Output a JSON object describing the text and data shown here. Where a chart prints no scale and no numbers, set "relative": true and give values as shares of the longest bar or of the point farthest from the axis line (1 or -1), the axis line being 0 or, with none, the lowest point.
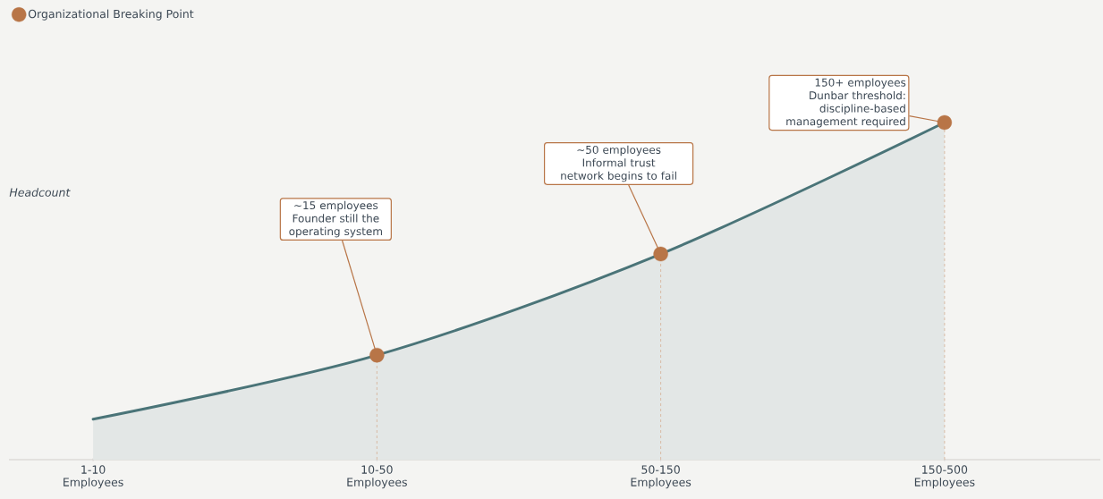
{
  "chart_data": {
    "type": "area",
    "relative": true,
    "ylabel": "Headcount",
    "categories": [
      "1-10 Employees",
      "10-50 Employees",
      "50-150 Employees",
      "150-500 Employees"
    ],
    "series": [
      {
        "color": "#4a7478",
        "values": [
          0.12,
          0.31,
          0.61,
          1
        ]
      },
      {
        "type": "scatter",
        "name": "Organizational Breaking Point",
        "color": "#b87547",
        "marker": "circle",
        "values": [
          null,
          0.31,
          0.61,
          1
        ]
      }
    ],
    "annotations": [
      {
        "text": "~15 employees Founder still the operating system",
        "x": "10-50 Employees",
        "y": 0.31
      },
      {
        "text": "~50 employees Informal trust network begins to fail",
        "x": "50-150 Employees",
        "y": 0.61
      },
      {
        "text": "150+ employees Dunbar threshold: discipline-based management required",
        "x": "150-500 Employees",
        "y": 1
      }
    ],
    "legend": "top left",
    "grid": false
  }
}
